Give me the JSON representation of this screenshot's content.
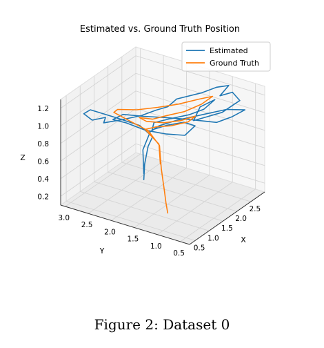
{
  "caption": "Figure 2: Dataset 0",
  "chart_data": {
    "type": "line",
    "title": "Estimated vs. Ground Truth Position",
    "xlabel": "X",
    "ylabel": "Y",
    "zlabel": "Z",
    "projection": "3d",
    "xlim": [
      0.3,
      3.0
    ],
    "ylim": [
      0.3,
      3.1
    ],
    "zlim": [
      0.1,
      1.3
    ],
    "x_ticks": [
      "0.5",
      "1.0",
      "1.5",
      "2.0",
      "2.5"
    ],
    "y_ticks": [
      "3.0",
      "2.5",
      "2.0",
      "1.5",
      "1.0",
      "0.5"
    ],
    "z_ticks": [
      "0.2",
      "0.4",
      "0.6",
      "0.8",
      "1.0",
      "1.2"
    ],
    "grid": true,
    "legend_position": "top-right",
    "series": [
      {
        "name": "Estimated",
        "color": "#1f77b4",
        "points": [
          [
            1.55,
            2.05,
            0.28
          ],
          [
            1.58,
            2.05,
            0.45
          ],
          [
            1.62,
            2.0,
            0.65
          ],
          [
            1.7,
            1.95,
            0.75
          ],
          [
            1.65,
            2.2,
            0.85
          ],
          [
            1.45,
            2.6,
            0.92
          ],
          [
            1.2,
            3.0,
            1.0
          ],
          [
            1.05,
            3.05,
            0.98
          ],
          [
            1.1,
            2.9,
            0.92
          ],
          [
            1.25,
            2.7,
            0.95
          ],
          [
            1.35,
            2.8,
            0.85
          ],
          [
            1.5,
            2.5,
            0.9
          ],
          [
            1.7,
            2.2,
            0.95
          ],
          [
            1.9,
            2.0,
            1.0
          ],
          [
            2.0,
            1.8,
            1.05
          ],
          [
            2.15,
            1.7,
            1.12
          ],
          [
            2.4,
            1.3,
            1.2
          ],
          [
            2.6,
            1.1,
            1.25
          ],
          [
            2.7,
            0.9,
            1.28
          ],
          [
            2.55,
            1.0,
            1.18
          ],
          [
            2.75,
            0.85,
            1.2
          ],
          [
            2.85,
            0.75,
            1.1
          ],
          [
            2.7,
            0.85,
            1.05
          ],
          [
            2.55,
            0.95,
            1.0
          ],
          [
            2.3,
            1.15,
            0.97
          ],
          [
            2.1,
            1.3,
            0.95
          ],
          [
            2.25,
            1.25,
            1.08
          ],
          [
            2.45,
            1.05,
            1.15
          ],
          [
            2.3,
            1.2,
            1.05
          ],
          [
            2.1,
            1.4,
            1.0
          ],
          [
            1.9,
            1.7,
            0.95
          ],
          [
            1.75,
            1.95,
            0.9
          ],
          [
            1.85,
            2.05,
            0.78
          ],
          [
            2.05,
            1.85,
            0.82
          ],
          [
            2.25,
            1.6,
            0.85
          ],
          [
            2.4,
            1.45,
            0.8
          ],
          [
            2.2,
            1.55,
            0.72
          ],
          [
            1.95,
            1.8,
            0.75
          ],
          [
            1.7,
            2.1,
            0.8
          ],
          [
            1.5,
            2.4,
            0.88
          ],
          [
            1.35,
            2.6,
            0.92
          ],
          [
            1.55,
            2.5,
            0.95
          ],
          [
            1.8,
            2.2,
            0.92
          ],
          [
            2.05,
            1.9,
            0.9
          ],
          [
            2.3,
            1.55,
            0.88
          ],
          [
            2.6,
            1.1,
            0.85
          ],
          [
            2.8,
            0.9,
            0.9
          ],
          [
            2.95,
            0.7,
            0.98
          ],
          [
            2.7,
            0.95,
            1.0
          ],
          [
            2.4,
            1.3,
            0.95
          ],
          [
            2.1,
            1.65,
            0.9
          ],
          [
            1.85,
            1.9,
            0.85
          ],
          [
            1.7,
            2.0,
            0.8
          ],
          [
            1.6,
            2.1,
            0.6
          ],
          [
            1.55,
            2.05,
            0.35
          ]
        ]
      },
      {
        "name": "Ground Truth",
        "color": "#ff7f0e",
        "points": [
          [
            1.5,
            1.5,
            0.0
          ],
          [
            1.52,
            1.55,
            0.1
          ],
          [
            1.55,
            1.6,
            0.22
          ],
          [
            1.58,
            1.65,
            0.32
          ],
          [
            1.6,
            1.7,
            0.45
          ],
          [
            1.6,
            1.72,
            0.58
          ],
          [
            1.62,
            1.75,
            0.7
          ],
          [
            1.55,
            1.95,
            0.85
          ],
          [
            1.4,
            2.3,
            0.95
          ],
          [
            1.3,
            2.55,
            1.02
          ],
          [
            1.35,
            2.5,
            1.05
          ],
          [
            1.55,
            2.2,
            1.05
          ],
          [
            1.8,
            1.9,
            1.07
          ],
          [
            2.05,
            1.6,
            1.1
          ],
          [
            2.3,
            1.3,
            1.15
          ],
          [
            2.45,
            1.1,
            1.18
          ],
          [
            2.3,
            1.25,
            1.1
          ],
          [
            2.1,
            1.5,
            1.02
          ],
          [
            1.9,
            1.75,
            0.98
          ],
          [
            1.7,
            1.95,
            0.95
          ],
          [
            1.55,
            2.15,
            0.97
          ],
          [
            1.65,
            2.05,
            0.92
          ],
          [
            1.85,
            1.8,
            0.9
          ],
          [
            2.05,
            1.55,
            0.92
          ],
          [
            2.25,
            1.35,
            0.96
          ],
          [
            2.15,
            1.45,
            0.9
          ],
          [
            1.95,
            1.7,
            0.86
          ],
          [
            1.75,
            1.9,
            0.86
          ],
          [
            1.6,
            2.05,
            0.84
          ],
          [
            1.6,
            1.75,
            0.72
          ],
          [
            1.6,
            1.72,
            0.5
          ]
        ]
      }
    ]
  }
}
